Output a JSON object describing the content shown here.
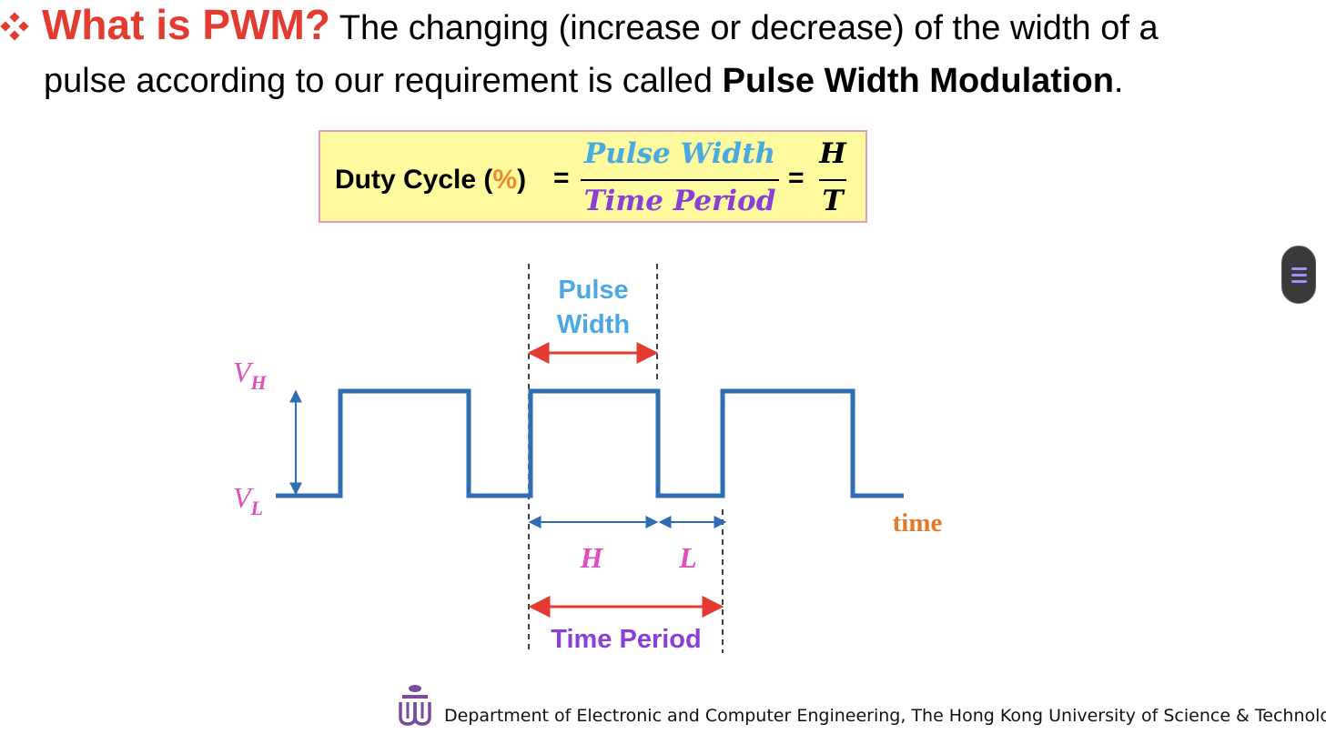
{
  "heading": {
    "bullet_icon": "four-diamond-bullet-icon",
    "title": "What is PWM?",
    "line1_rest": " The changing (increase or decrease) of the width of a",
    "line2_prefix": "pulse according to our requirement is called ",
    "line2_bold": "Pulse Width Modulation",
    "line2_suffix": "."
  },
  "formula": {
    "label_prefix": "Duty Cycle (",
    "label_percent": "%",
    "label_suffix": ")",
    "equals": "=",
    "numerator": "Pulse Width",
    "denominator": "Time Period",
    "numerator2": "H",
    "denominator2": "T",
    "colors": {
      "numerator": "#4aa9e3",
      "denominator": "#8b3fd9",
      "percent": "#ef8a2e",
      "background": "#fdfb9d",
      "border": "#e89ac7"
    }
  },
  "diagram": {
    "pulse_width_label_1": "Pulse",
    "pulse_width_label_2": "Width",
    "vh_base": "V",
    "vh_sub": "H",
    "vl_base": "V",
    "vl_sub": "L",
    "h_label": "H",
    "l_label": "L",
    "time_period_label": "Time Period",
    "time_label": "time",
    "colors": {
      "waveform": "#2f6db4",
      "arrow_red": "#e33b2f",
      "pulse_width_text": "#4aa9e3",
      "time_period_text": "#8b3fd9",
      "voltage_text": "#e04dbd",
      "hl_text": "#e04dbd",
      "time_text": "#e27a2a"
    }
  },
  "ui": {
    "menu_icon": "hamburger-menu-icon"
  },
  "footer": {
    "logo_icon": "hkust-logo-icon",
    "text": "Department of Electronic and Computer Engineering, The Hong Kong University of Science & Technology"
  }
}
